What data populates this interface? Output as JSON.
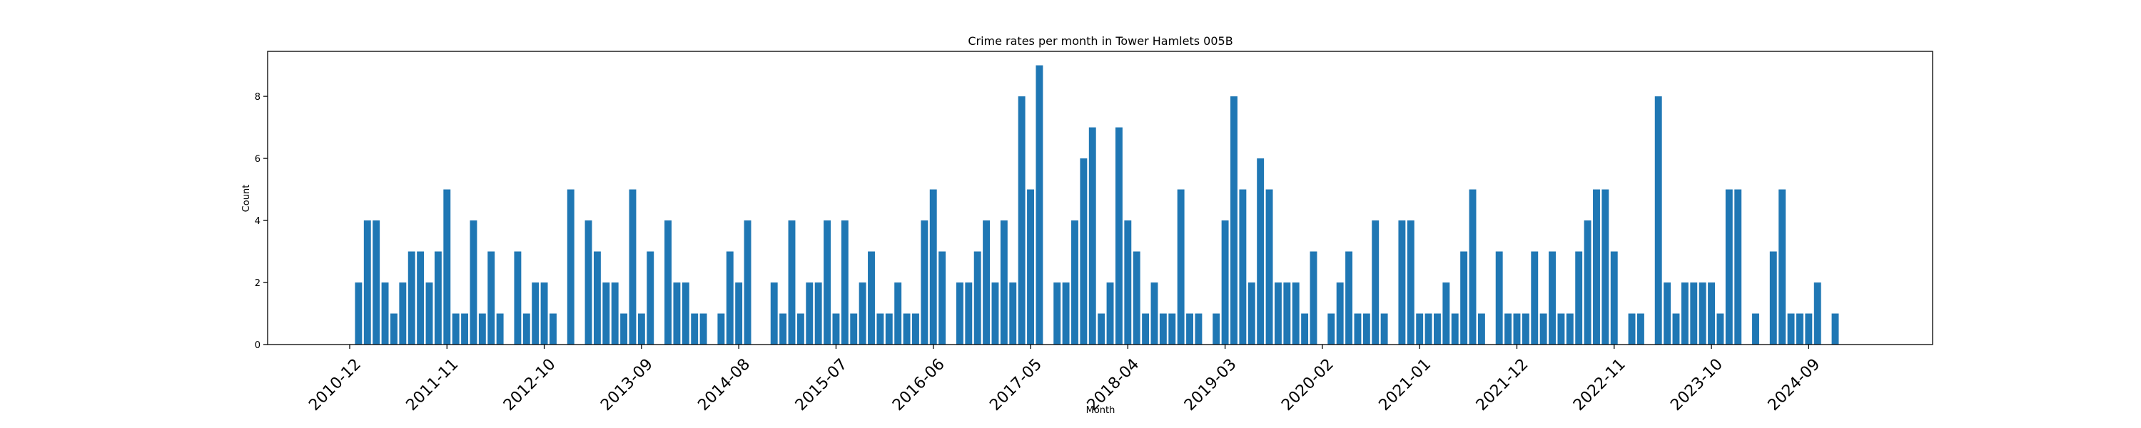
{
  "chart_data": {
    "type": "bar",
    "title": "Crime rates per month in Tower Hamlets 005B",
    "xlabel": "Month",
    "ylabel": "Count",
    "ylim": [
      0,
      9.45
    ],
    "yticks": [
      0,
      2,
      4,
      6,
      8
    ],
    "xticks": [
      "2010-12",
      "2011-11",
      "2012-10",
      "2013-09",
      "2014-08",
      "2015-07",
      "2016-06",
      "2017-05",
      "2018-04",
      "2019-03",
      "2020-02",
      "2021-01",
      "2021-12",
      "2022-11",
      "2023-10",
      "2024-09"
    ],
    "grid": false,
    "x_start": "2010-12",
    "values": [
      null,
      2,
      4,
      4,
      2,
      1,
      2,
      3,
      3,
      2,
      3,
      5,
      1,
      1,
      4,
      1,
      3,
      1,
      null,
      3,
      1,
      2,
      2,
      1,
      null,
      5,
      null,
      4,
      3,
      2,
      2,
      1,
      5,
      1,
      3,
      null,
      4,
      2,
      2,
      1,
      1,
      null,
      1,
      3,
      2,
      4,
      null,
      null,
      2,
      1,
      4,
      1,
      2,
      2,
      4,
      1,
      4,
      1,
      2,
      3,
      1,
      1,
      2,
      1,
      1,
      4,
      5,
      3,
      null,
      2,
      2,
      3,
      4,
      2,
      4,
      2,
      8,
      5,
      9,
      null,
      2,
      2,
      4,
      6,
      7,
      1,
      2,
      7,
      4,
      3,
      1,
      2,
      1,
      1,
      5,
      1,
      1,
      null,
      1,
      4,
      8,
      5,
      2,
      6,
      5,
      2,
      2,
      2,
      1,
      3,
      null,
      1,
      2,
      3,
      1,
      1,
      4,
      1,
      null,
      4,
      4,
      1,
      1,
      1,
      2,
      1,
      3,
      5,
      1,
      null,
      3,
      1,
      1,
      1,
      3,
      1,
      3,
      1,
      1,
      3,
      4,
      5,
      5,
      3,
      null,
      1,
      1,
      null,
      8,
      2,
      1,
      2,
      2,
      2,
      2,
      1,
      5,
      5,
      null,
      1,
      null,
      3,
      5,
      1,
      1,
      1,
      2,
      null,
      1
    ]
  }
}
